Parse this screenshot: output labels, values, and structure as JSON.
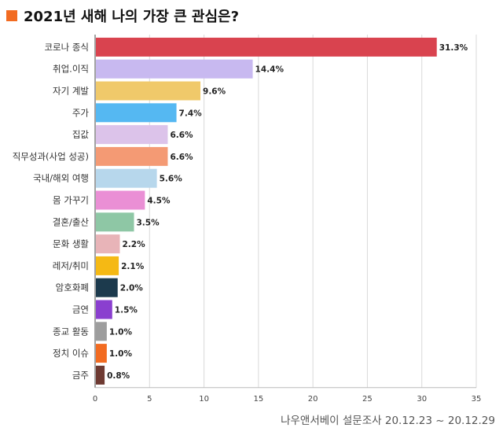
{
  "title": "2021년 새해 나의 가장 큰 관심은?",
  "source": "나우앤서베이 설문조사 20.12.23 ~ 20.12.29",
  "colors": {
    "accent": "#f26b21"
  },
  "chart_data": {
    "type": "bar",
    "orientation": "horizontal",
    "categories": [
      "코로나 종식",
      "취업.이직",
      "자기 계발",
      "주가",
      "집값",
      "직무성과(사업 성공)",
      "국내/해외 여행",
      "몸 가꾸기",
      "결혼/출산",
      "문화 생활",
      "레저/취미",
      "암호화폐",
      "금연",
      "종교 활동",
      "정치 이슈",
      "금주"
    ],
    "values": [
      31.3,
      14.4,
      9.6,
      7.4,
      6.6,
      6.6,
      5.6,
      4.5,
      3.5,
      2.2,
      2.1,
      2.0,
      1.5,
      1.0,
      1.0,
      0.8
    ],
    "value_labels": [
      "31.3%",
      "14.4%",
      "9.6%",
      "7.4%",
      "6.6%",
      "6.6%",
      "5.6%",
      "4.5%",
      "3.5%",
      "2.2%",
      "2.1%",
      "2.0%",
      "1.5%",
      "1.0%",
      "1.0%",
      "0.8%"
    ],
    "colors": [
      "#d9434f",
      "#c8b9f0",
      "#f0c96a",
      "#55b8f2",
      "#dcc3ea",
      "#f49a74",
      "#b7d7ec",
      "#ea8fd5",
      "#8ec7a5",
      "#e8b4b8",
      "#f5b914",
      "#1c3a4d",
      "#8a3fcf",
      "#9d9d9d",
      "#f26b21",
      "#6e3a32"
    ],
    "xticks": [
      0,
      5,
      10,
      15,
      20,
      25,
      30,
      35
    ],
    "xlim": [
      0,
      35
    ],
    "title": "2021년 새해 나의 가장 큰 관심은?",
    "xlabel": "",
    "ylabel": "",
    "grid": true
  }
}
